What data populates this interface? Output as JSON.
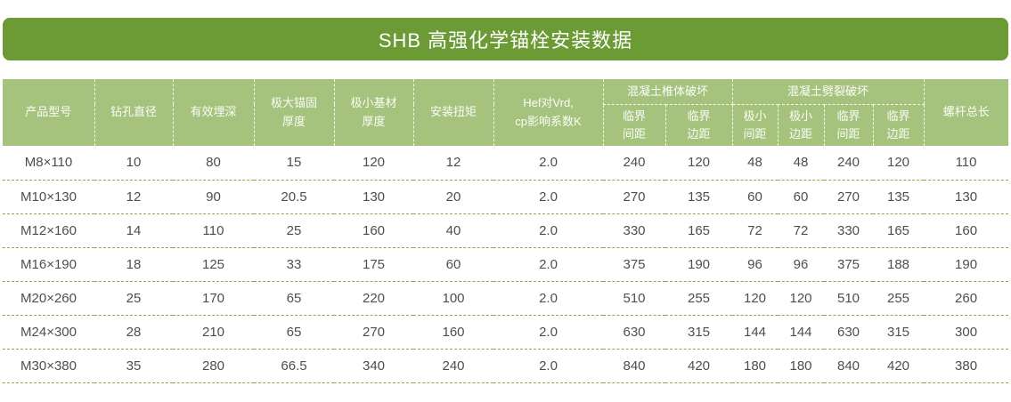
{
  "title": "SHB 高强化学锚栓安装数据",
  "colors": {
    "title_bar_green": "#6c9a34",
    "header_green": "#a5c37c",
    "row_divider_green": "#8aa94f",
    "data_text_gray": "#4e4e4e",
    "header_text": "#ffffff"
  },
  "table": {
    "headers": {
      "product_model": "产品型号",
      "drill_diameter": "钻孔直径",
      "effective_depth": "有效埋深",
      "max_anchor_thickness": "极大锚固\n厚度",
      "min_base_thickness": "极小基材\n厚度",
      "install_torque": "安装扭矩",
      "hef_coefficient": "Hef对Vrd,\ncp影响系数K",
      "cone_failure_group": "混凝土椎体破坏",
      "cone_critical_spacing": "临界\n间距",
      "cone_critical_edge": "临界\n边距",
      "split_failure_group": "混凝土劈裂破坏",
      "split_min_spacing": "极小\n间距",
      "split_min_edge": "极小\n边距",
      "split_critical_spacing": "临界\n间距",
      "split_critical_edge": "临界\n边距",
      "screw_total_length": "螺杆总长"
    },
    "rows": [
      [
        "M8×110",
        "10",
        "80",
        "15",
        "120",
        "12",
        "2.0",
        "240",
        "120",
        "48",
        "48",
        "240",
        "120",
        "110"
      ],
      [
        "M10×130",
        "12",
        "90",
        "20.5",
        "130",
        "20",
        "2.0",
        "270",
        "135",
        "60",
        "60",
        "270",
        "135",
        "130"
      ],
      [
        "M12×160",
        "14",
        "110",
        "25",
        "160",
        "40",
        "2.0",
        "330",
        "165",
        "72",
        "72",
        "330",
        "165",
        "160"
      ],
      [
        "M16×190",
        "18",
        "125",
        "33",
        "175",
        "60",
        "2.0",
        "375",
        "190",
        "96",
        "96",
        "375",
        "188",
        "190"
      ],
      [
        "M20×260",
        "25",
        "170",
        "65",
        "220",
        "100",
        "2.0",
        "510",
        "255",
        "120",
        "120",
        "510",
        "255",
        "260"
      ],
      [
        "M24×300",
        "28",
        "210",
        "65",
        "270",
        "160",
        "2.0",
        "630",
        "315",
        "144",
        "144",
        "630",
        "315",
        "300"
      ],
      [
        "M30×380",
        "35",
        "280",
        "66.5",
        "340",
        "240",
        "2.0",
        "840",
        "420",
        "180",
        "180",
        "840",
        "420",
        "380"
      ]
    ]
  },
  "chart_data": {
    "type": "table",
    "title": "SHB 高强化学锚栓安装数据",
    "columns": [
      "产品型号",
      "钻孔直径",
      "有效埋深",
      "极大锚固厚度",
      "极小基材厚度",
      "安装扭矩",
      "Hef对Vrd,cp影响系数K",
      "混凝土椎体破坏-临界间距",
      "混凝土椎体破坏-临界边距",
      "混凝土劈裂破坏-极小间距",
      "混凝土劈裂破坏-极小边距",
      "混凝土劈裂破坏-临界间距",
      "混凝土劈裂破坏-临界边距",
      "螺杆总长"
    ],
    "rows": [
      [
        "M8×110",
        10,
        80,
        15,
        120,
        12,
        2.0,
        240,
        120,
        48,
        48,
        240,
        120,
        110
      ],
      [
        "M10×130",
        12,
        90,
        20.5,
        130,
        20,
        2.0,
        270,
        135,
        60,
        60,
        270,
        135,
        130
      ],
      [
        "M12×160",
        14,
        110,
        25,
        160,
        40,
        2.0,
        330,
        165,
        72,
        72,
        330,
        165,
        160
      ],
      [
        "M16×190",
        18,
        125,
        33,
        175,
        60,
        2.0,
        375,
        190,
        96,
        96,
        375,
        188,
        190
      ],
      [
        "M20×260",
        25,
        170,
        65,
        220,
        100,
        2.0,
        510,
        255,
        120,
        120,
        510,
        255,
        260
      ],
      [
        "M24×300",
        28,
        210,
        65,
        270,
        160,
        2.0,
        630,
        315,
        144,
        144,
        630,
        315,
        300
      ],
      [
        "M30×380",
        35,
        280,
        66.5,
        340,
        240,
        2.0,
        840,
        420,
        180,
        180,
        840,
        420,
        380
      ]
    ]
  }
}
